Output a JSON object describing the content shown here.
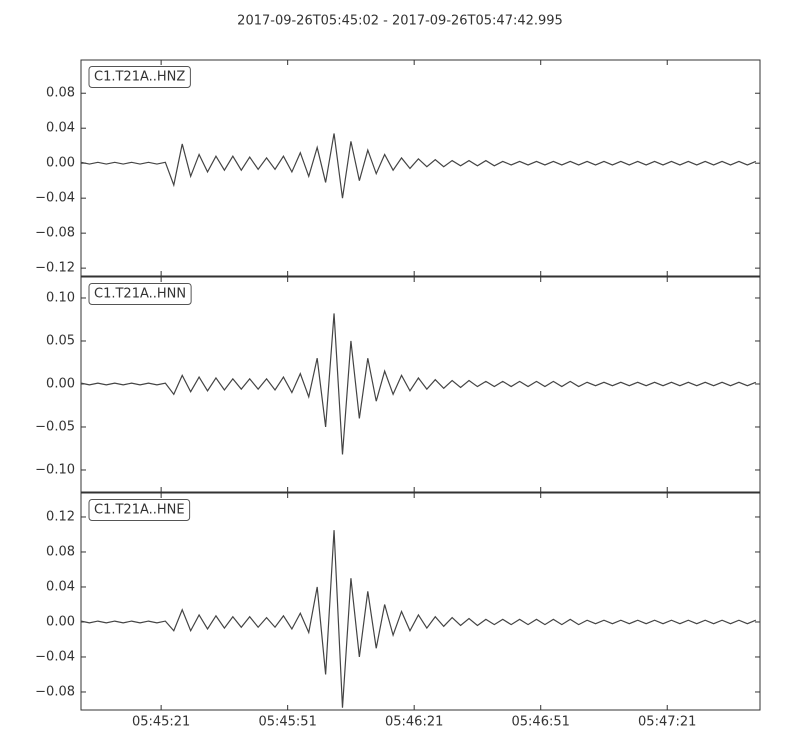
{
  "title": "2017-09-26T05:45:02  -  2017-09-26T05:47:42.995",
  "chart_data": [
    {
      "type": "line",
      "xlim": [
        "05:45:02",
        "05:47:42.995"
      ],
      "ylim": [
        -0.129,
        0.118
      ],
      "yticks": [
        {
          "value": -0.12,
          "label": "−0.12"
        },
        {
          "value": -0.08,
          "label": "−0.08"
        },
        {
          "value": -0.04,
          "label": "−0.04"
        },
        {
          "value": 0,
          "label": "0.00"
        },
        0.04,
        0.08
      ],
      "x": [
        "05:45:02",
        "05:45:04",
        "05:45:06",
        "05:45:08",
        "05:45:10",
        "05:45:12",
        "05:45:14",
        "05:45:16",
        "05:45:18",
        "05:45:20",
        "05:45:22",
        "05:45:24",
        "05:45:26",
        "05:45:28",
        "05:45:30",
        "05:45:32",
        "05:45:34",
        "05:45:36",
        "05:45:38",
        "05:45:40",
        "05:45:42",
        "05:45:44",
        "05:45:46",
        "05:45:48",
        "05:45:50",
        "05:45:52",
        "05:45:54",
        "05:45:56",
        "05:45:58",
        "05:46:00",
        "05:46:02",
        "05:46:04",
        "05:46:06",
        "05:46:08",
        "05:46:10",
        "05:46:12",
        "05:46:14",
        "05:46:16",
        "05:46:18",
        "05:46:20",
        "05:46:22",
        "05:46:24",
        "05:46:26",
        "05:46:28",
        "05:46:30",
        "05:46:32",
        "05:46:34",
        "05:46:36",
        "05:46:38",
        "05:46:40",
        "05:46:42",
        "05:46:44",
        "05:46:46",
        "05:46:48",
        "05:46:50",
        "05:46:52",
        "05:46:54",
        "05:46:56",
        "05:46:58",
        "05:47:00",
        "05:47:02",
        "05:47:04",
        "05:47:06",
        "05:47:08",
        "05:47:10",
        "05:47:12",
        "05:47:14",
        "05:47:16",
        "05:47:18",
        "05:47:20",
        "05:47:22",
        "05:47:24",
        "05:47:26",
        "05:47:28",
        "05:47:30",
        "05:47:32",
        "05:47:34",
        "05:47:36",
        "05:47:38",
        "05:47:40",
        "05:47:42"
      ],
      "series": [
        {
          "name": "C1.T21A..HNZ",
          "color": "#444444",
          "values": [
            0.001,
            -0.001,
            0.001,
            -0.001,
            0.001,
            -0.001,
            0.001,
            -0.001,
            0.001,
            -0.001,
            0.001,
            -0.025,
            0.022,
            -0.015,
            0.01,
            -0.01,
            0.008,
            -0.008,
            0.008,
            -0.008,
            0.007,
            -0.007,
            0.006,
            -0.007,
            0.008,
            -0.01,
            0.012,
            -0.015,
            0.018,
            -0.022,
            0.034,
            -0.04,
            0.025,
            -0.02,
            0.015,
            -0.012,
            0.01,
            -0.008,
            0.006,
            -0.006,
            0.005,
            -0.004,
            0.004,
            -0.004,
            0.003,
            -0.003,
            0.003,
            -0.003,
            0.003,
            -0.003,
            0.002,
            -0.002,
            0.002,
            -0.002,
            0.002,
            -0.002,
            0.002,
            -0.002,
            0.002,
            -0.002,
            0.002,
            -0.002,
            0.002,
            -0.002,
            0.002,
            -0.002,
            0.002,
            -0.002,
            0.002,
            -0.002,
            0.002,
            -0.002,
            0.002,
            -0.002,
            0.002,
            -0.002,
            0.002,
            -0.002,
            0.002,
            -0.002,
            0.002
          ]
        }
      ]
    },
    {
      "type": "line",
      "xlim": [
        "05:45:02",
        "05:47:42.995"
      ],
      "ylim": [
        -0.1256,
        0.1244
      ],
      "yticks": [
        {
          "value": -0.1,
          "label": "−0.10"
        },
        {
          "value": -0.05,
          "label": "−0.05"
        },
        {
          "value": 0,
          "label": "0.00"
        },
        0.05,
        {
          "value": 0.1,
          "label": "0.10"
        }
      ],
      "x": [
        "05:45:02",
        "05:45:04",
        "05:45:06",
        "05:45:08",
        "05:45:10",
        "05:45:12",
        "05:45:14",
        "05:45:16",
        "05:45:18",
        "05:45:20",
        "05:45:22",
        "05:45:24",
        "05:45:26",
        "05:45:28",
        "05:45:30",
        "05:45:32",
        "05:45:34",
        "05:45:36",
        "05:45:38",
        "05:45:40",
        "05:45:42",
        "05:45:44",
        "05:45:46",
        "05:45:48",
        "05:45:50",
        "05:45:52",
        "05:45:54",
        "05:45:56",
        "05:45:58",
        "05:46:00",
        "05:46:02",
        "05:46:04",
        "05:46:06",
        "05:46:08",
        "05:46:10",
        "05:46:12",
        "05:46:14",
        "05:46:16",
        "05:46:18",
        "05:46:20",
        "05:46:22",
        "05:46:24",
        "05:46:26",
        "05:46:28",
        "05:46:30",
        "05:46:32",
        "05:46:34",
        "05:46:36",
        "05:46:38",
        "05:46:40",
        "05:46:42",
        "05:46:44",
        "05:46:46",
        "05:46:48",
        "05:46:50",
        "05:46:52",
        "05:46:54",
        "05:46:56",
        "05:46:58",
        "05:47:00",
        "05:47:02",
        "05:47:04",
        "05:47:06",
        "05:47:08",
        "05:47:10",
        "05:47:12",
        "05:47:14",
        "05:47:16",
        "05:47:18",
        "05:47:20",
        "05:47:22",
        "05:47:24",
        "05:47:26",
        "05:47:28",
        "05:47:30",
        "05:47:32",
        "05:47:34",
        "05:47:36",
        "05:47:38",
        "05:47:40",
        "05:47:42"
      ],
      "series": [
        {
          "name": "C1.T21A..HNN",
          "color": "#444444",
          "values": [
            0.001,
            -0.001,
            0.001,
            -0.001,
            0.001,
            -0.001,
            0.001,
            -0.001,
            0.001,
            -0.001,
            0.001,
            -0.012,
            0.01,
            -0.009,
            0.008,
            -0.008,
            0.007,
            -0.007,
            0.006,
            -0.006,
            0.006,
            -0.006,
            0.006,
            -0.007,
            0.008,
            -0.01,
            0.012,
            -0.015,
            0.03,
            -0.05,
            0.082,
            -0.082,
            0.05,
            -0.04,
            0.03,
            -0.02,
            0.015,
            -0.012,
            0.01,
            -0.008,
            0.007,
            -0.006,
            0.005,
            -0.005,
            0.004,
            -0.004,
            0.004,
            -0.003,
            0.003,
            -0.003,
            0.003,
            -0.003,
            0.003,
            -0.003,
            0.003,
            -0.003,
            0.003,
            -0.003,
            0.003,
            -0.003,
            0.002,
            -0.002,
            0.002,
            -0.002,
            0.002,
            -0.002,
            0.002,
            -0.002,
            0.002,
            -0.002,
            0.002,
            -0.002,
            0.002,
            -0.002,
            0.002,
            -0.002,
            0.002,
            -0.002,
            0.002,
            -0.002,
            0.002
          ]
        }
      ]
    },
    {
      "type": "line",
      "xlim": [
        "05:45:02",
        "05:47:42.995"
      ],
      "ylim": [
        -0.1006,
        0.1474
      ],
      "yticks": [
        {
          "value": -0.08,
          "label": "−0.08"
        },
        {
          "value": -0.04,
          "label": "−0.04"
        },
        {
          "value": 0,
          "label": "0.00"
        },
        0.04,
        0.08,
        0.12
      ],
      "xticks": [
        "05:45:21",
        "05:45:51",
        "05:46:21",
        "05:46:51",
        "05:47:21"
      ],
      "x": [
        "05:45:02",
        "05:45:04",
        "05:45:06",
        "05:45:08",
        "05:45:10",
        "05:45:12",
        "05:45:14",
        "05:45:16",
        "05:45:18",
        "05:45:20",
        "05:45:22",
        "05:45:24",
        "05:45:26",
        "05:45:28",
        "05:45:30",
        "05:45:32",
        "05:45:34",
        "05:45:36",
        "05:45:38",
        "05:45:40",
        "05:45:42",
        "05:45:44",
        "05:45:46",
        "05:45:48",
        "05:45:50",
        "05:45:52",
        "05:45:54",
        "05:45:56",
        "05:45:58",
        "05:46:00",
        "05:46:02",
        "05:46:04",
        "05:46:06",
        "05:46:08",
        "05:46:10",
        "05:46:12",
        "05:46:14",
        "05:46:16",
        "05:46:18",
        "05:46:20",
        "05:46:22",
        "05:46:24",
        "05:46:26",
        "05:46:28",
        "05:46:30",
        "05:46:32",
        "05:46:34",
        "05:46:36",
        "05:46:38",
        "05:46:40",
        "05:46:42",
        "05:46:44",
        "05:46:46",
        "05:46:48",
        "05:46:50",
        "05:46:52",
        "05:46:54",
        "05:46:56",
        "05:46:58",
        "05:47:00",
        "05:47:02",
        "05:47:04",
        "05:47:06",
        "05:47:08",
        "05:47:10",
        "05:47:12",
        "05:47:14",
        "05:47:16",
        "05:47:18",
        "05:47:20",
        "05:47:22",
        "05:47:24",
        "05:47:26",
        "05:47:28",
        "05:47:30",
        "05:47:32",
        "05:47:34",
        "05:47:36",
        "05:47:38",
        "05:47:40",
        "05:47:42"
      ],
      "series": [
        {
          "name": "C1.T21A..HNE",
          "color": "#444444",
          "values": [
            0.001,
            -0.001,
            0.001,
            -0.001,
            0.001,
            -0.001,
            0.001,
            -0.001,
            0.001,
            -0.001,
            0.001,
            -0.01,
            0.014,
            -0.01,
            0.008,
            -0.008,
            0.007,
            -0.007,
            0.006,
            -0.006,
            0.006,
            -0.006,
            0.005,
            -0.006,
            0.007,
            -0.008,
            0.01,
            -0.012,
            0.04,
            -0.06,
            0.105,
            -0.098,
            0.05,
            -0.04,
            0.035,
            -0.03,
            0.02,
            -0.015,
            0.012,
            -0.01,
            0.008,
            -0.007,
            0.006,
            -0.005,
            0.005,
            -0.004,
            0.004,
            -0.004,
            0.003,
            -0.003,
            0.003,
            -0.003,
            0.003,
            -0.003,
            0.003,
            -0.003,
            0.003,
            -0.003,
            0.003,
            -0.003,
            0.002,
            -0.002,
            0.002,
            -0.002,
            0.002,
            -0.002,
            0.002,
            -0.002,
            0.002,
            -0.002,
            0.002,
            -0.002,
            0.002,
            -0.002,
            0.002,
            -0.002,
            0.002,
            -0.002,
            0.002,
            -0.002,
            0.002
          ]
        }
      ]
    }
  ]
}
